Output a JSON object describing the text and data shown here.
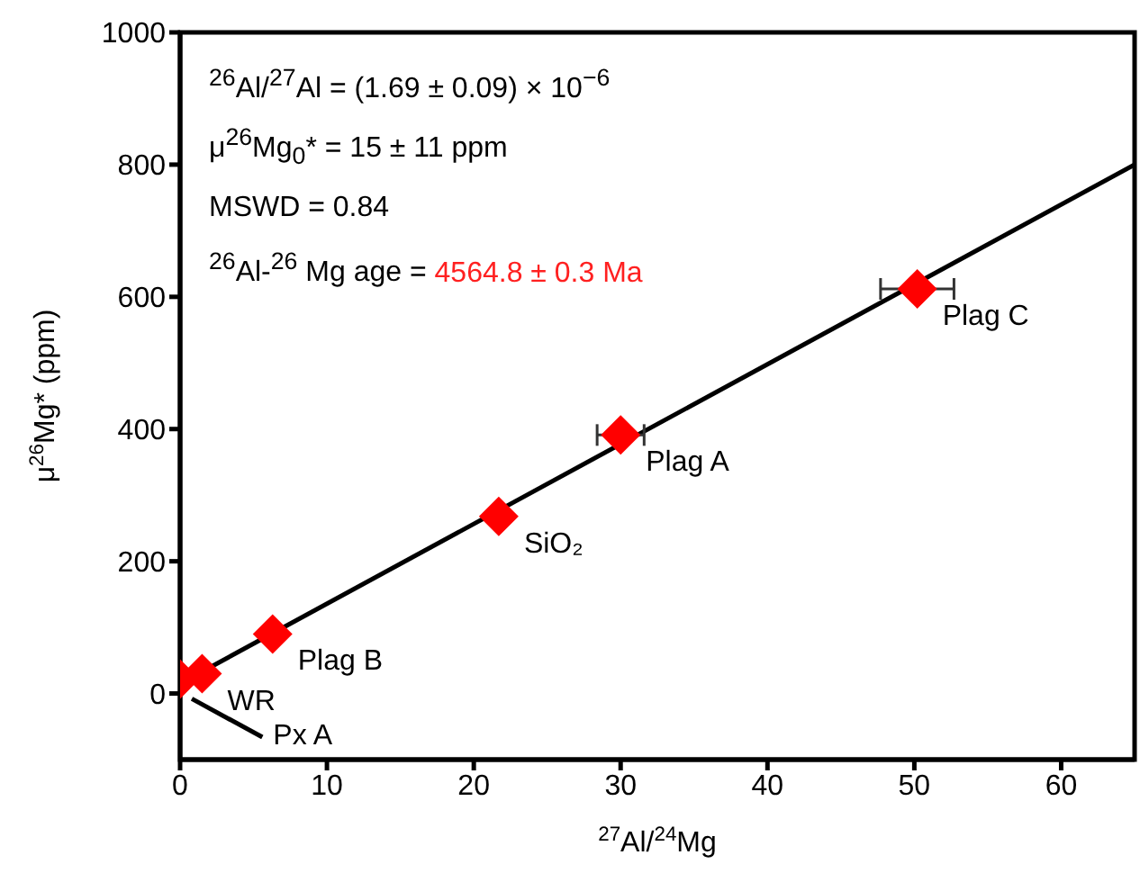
{
  "chart_data": {
    "type": "scatter",
    "xlabel": "$^{27}$Al/$^{24}$Mg",
    "ylabel": "μ$^{26}$Mg* (ppm)",
    "xlim": [
      0,
      65
    ],
    "xticks": [
      0,
      10,
      20,
      30,
      40,
      50,
      60
    ],
    "ylim": [
      -100,
      1000
    ],
    "yticks": [
      0,
      200,
      400,
      600,
      800,
      1000
    ],
    "marker": "diamond",
    "annotations": [
      "$^{26}$Al/$^{27}$Al = (1.69 ± 0.09) × 10$^{−6}$",
      "μ$^{26}$Mg$_{0}$* = 15 ± 11 ppm",
      "MSWD = 0.84",
      "$^{26}$Al-$^{26}$ Mg age =",
      "4564.8 ± 0.3 Ma"
    ],
    "series": [
      {
        "type": "line",
        "color": "#000000",
        "x": [
          0,
          65
        ],
        "values": [
          15,
          800
        ],
        "marker": "none"
      },
      {
        "type": "line",
        "name": "Px A",
        "color": "#000000",
        "x": [
          0.8,
          5.6
        ],
        "values": [
          -8,
          -66
        ],
        "marker": "none"
      },
      {
        "color": "#ff0000",
        "x": [
          0
        ],
        "values": [
          22
        ]
      },
      {
        "name": "WR",
        "color": "#ff0000",
        "x": [
          1.5
        ],
        "values": [
          30
        ]
      },
      {
        "name": "Plag B",
        "color": "#ff0000",
        "x": [
          6.3
        ],
        "values": [
          90
        ]
      },
      {
        "name": "SiO₂",
        "color": "#ff0000",
        "x": [
          21.7
        ],
        "values": [
          268
        ]
      },
      {
        "name": "Plag A",
        "color": "#ff0000",
        "x": [
          30
        ],
        "values": [
          391
        ],
        "xerrors": [
          1.6
        ]
      },
      {
        "name": "Plag C",
        "color": "#ff0000",
        "x": [
          50.2
        ],
        "values": [
          612
        ],
        "xerrors": [
          2.5
        ]
      }
    ]
  }
}
